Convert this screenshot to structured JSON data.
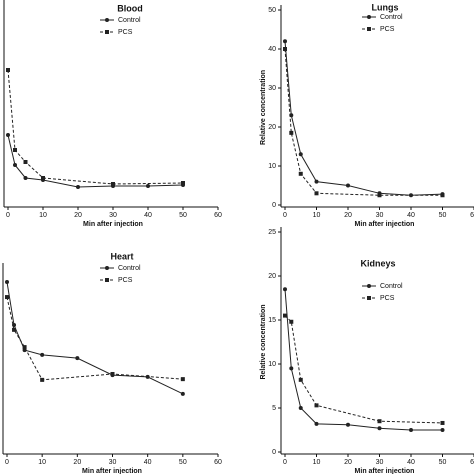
{
  "chart_data": [
    {
      "type": "line",
      "title": "Blood",
      "xlabel": "Min after injection",
      "xlim": [
        0,
        60
      ],
      "xticks": [
        0,
        10,
        20,
        30,
        40,
        50,
        60
      ],
      "ylim": [
        0,
        50
      ],
      "series": [
        {
          "name": "Control",
          "color": "#222222",
          "marker": "circle",
          "dashed": false,
          "x": [
            0,
            2,
            5,
            10,
            20,
            30,
            40,
            50
          ],
          "values": [
            17.5,
            10,
            6.75,
            6.25,
            4.5,
            4.75,
            4.75,
            5
          ]
        },
        {
          "name": "PCS",
          "color": "#222222",
          "marker": "square",
          "dashed": true,
          "x": [
            0,
            2,
            5,
            10,
            30,
            50
          ],
          "values": [
            33.75,
            13.75,
            10.75,
            6.75,
            5.25,
            5.5
          ]
        }
      ]
    },
    {
      "type": "line",
      "title": "Lungs",
      "xlabel": "Min after injection",
      "ylabel": "Relative concentration",
      "xlim": [
        0,
        60
      ],
      "xticks": [
        0,
        10,
        20,
        30,
        40,
        50,
        60
      ],
      "ylim": [
        0,
        50
      ],
      "yticks": [
        0,
        10,
        20,
        30,
        40,
        50
      ],
      "series": [
        {
          "name": "Control",
          "color": "#222222",
          "marker": "circle",
          "dashed": false,
          "x": [
            0,
            2,
            5,
            10,
            20,
            30,
            40,
            50
          ],
          "values": [
            42,
            23,
            13,
            6,
            5,
            3,
            2.5,
            2.8
          ]
        },
        {
          "name": "PCS",
          "color": "#222222",
          "marker": "square",
          "dashed": true,
          "x": [
            0,
            2,
            5,
            10,
            30,
            50
          ],
          "values": [
            40,
            18.5,
            8,
            3,
            2.5,
            2.5
          ]
        }
      ]
    },
    {
      "type": "line",
      "title": "Heart",
      "xlabel": "Min after injection",
      "xlim": [
        0,
        60
      ],
      "xticks": [
        0,
        10,
        20,
        30,
        40,
        50,
        60
      ],
      "ylim": [
        0,
        50
      ],
      "series": [
        {
          "name": "Control",
          "color": "#222222",
          "marker": "circle",
          "dashed": false,
          "x": [
            0,
            2,
            5,
            10,
            20,
            30,
            40,
            50
          ],
          "values": [
            46.2,
            34.5,
            27.7,
            26.4,
            25.5,
            20.9,
            20.4,
            15.8
          ]
        },
        {
          "name": "PCS",
          "color": "#222222",
          "marker": "square",
          "dashed": true,
          "x": [
            0,
            2,
            5,
            10,
            30,
            50
          ],
          "values": [
            42.1,
            33.2,
            28.5,
            19.6,
            21.2,
            19.8
          ]
        }
      ]
    },
    {
      "type": "line",
      "title": "Kidneys",
      "xlabel": "Min after injection",
      "ylabel": "Relative concentration",
      "xlim": [
        0,
        60
      ],
      "xticks": [
        0,
        10,
        20,
        30,
        40,
        50,
        60
      ],
      "ylim": [
        0,
        25
      ],
      "yticks": [
        0,
        5,
        10,
        15,
        20,
        25
      ],
      "series": [
        {
          "name": "Control",
          "color": "#222222",
          "marker": "circle",
          "dashed": false,
          "x": [
            0,
            2,
            5,
            10,
            20,
            30,
            40,
            50
          ],
          "values": [
            18.5,
            9.5,
            5,
            3.2,
            3.1,
            2.7,
            2.5,
            2.5
          ]
        },
        {
          "name": "PCS",
          "color": "#222222",
          "marker": "square",
          "dashed": true,
          "x": [
            0,
            2,
            5,
            10,
            30,
            50
          ],
          "values": [
            15.5,
            14.8,
            8.2,
            5.3,
            3.5,
            3.3
          ]
        }
      ]
    }
  ]
}
